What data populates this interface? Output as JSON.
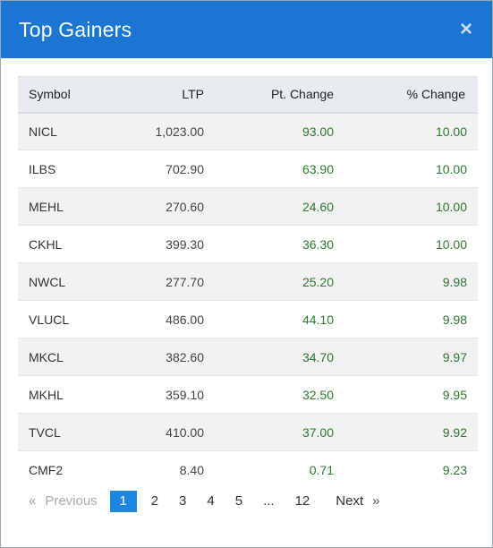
{
  "dialog": {
    "title": "Top Gainers",
    "close_glyph": "×",
    "close_icon": "close-icon"
  },
  "table": {
    "headers": {
      "symbol": "Symbol",
      "ltp": "LTP",
      "pt_change": "Pt. Change",
      "pct_change": "% Change"
    },
    "rows": [
      {
        "symbol": "NICL",
        "ltp": "1,023.00",
        "pt_change": "93.00",
        "pct_change": "10.00"
      },
      {
        "symbol": "ILBS",
        "ltp": "702.90",
        "pt_change": "63.90",
        "pct_change": "10.00"
      },
      {
        "symbol": "MEHL",
        "ltp": "270.60",
        "pt_change": "24.60",
        "pct_change": "10.00"
      },
      {
        "symbol": "CKHL",
        "ltp": "399.30",
        "pt_change": "36.30",
        "pct_change": "10.00"
      },
      {
        "symbol": "NWCL",
        "ltp": "277.70",
        "pt_change": "25.20",
        "pct_change": "9.98"
      },
      {
        "symbol": "VLUCL",
        "ltp": "486.00",
        "pt_change": "44.10",
        "pct_change": "9.98"
      },
      {
        "symbol": "MKCL",
        "ltp": "382.60",
        "pt_change": "34.70",
        "pct_change": "9.97"
      },
      {
        "symbol": "MKHL",
        "ltp": "359.10",
        "pt_change": "32.50",
        "pct_change": "9.95"
      },
      {
        "symbol": "TVCL",
        "ltp": "410.00",
        "pt_change": "37.00",
        "pct_change": "9.92"
      },
      {
        "symbol": "CMF2",
        "ltp": "8.40",
        "pt_change": "0.71",
        "pct_change": "9.23"
      }
    ]
  },
  "pagination": {
    "prev_arrow": "«",
    "prev_label": "Previous",
    "pages": [
      "1",
      "2",
      "3",
      "4",
      "5",
      "...",
      "12"
    ],
    "active_page": "1",
    "next_label": "Next",
    "next_arrow": "»"
  },
  "colors": {
    "header_bg": "#1a76d2",
    "positive": "#2b7a2e",
    "active_page_bg": "#1f86e0"
  }
}
